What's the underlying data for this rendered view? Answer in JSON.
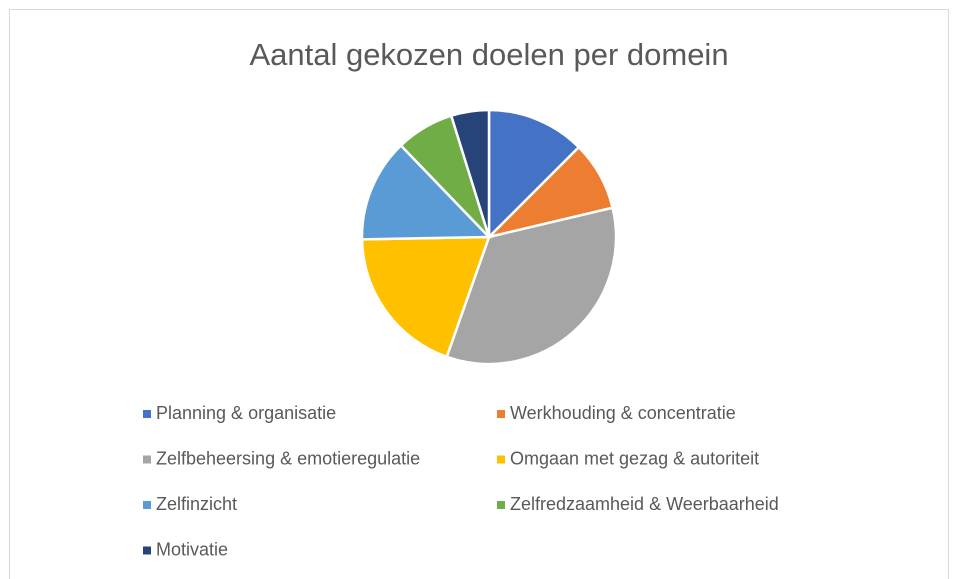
{
  "chart_data": {
    "type": "pie",
    "title": "Aantal gekozen doelen per domein",
    "categories": [
      "Planning & organisatie",
      "Werkhouding & concentratie",
      "Zelfbeheersing & emotieregulatie",
      "Omgaan met gezag & autoriteit",
      "Zelfinzicht",
      "Zelfredzaamheid & Weerbaarheid",
      "Motivatie"
    ],
    "values": [
      12.5,
      8.8,
      34.1,
      19.3,
      13.1,
      7.4,
      4.8
    ],
    "colors": [
      "#4472c4",
      "#ed7d31",
      "#a5a5a5",
      "#ffc000",
      "#5b9bd5",
      "#70ad47",
      "#264478"
    ],
    "legend": "bottom"
  }
}
